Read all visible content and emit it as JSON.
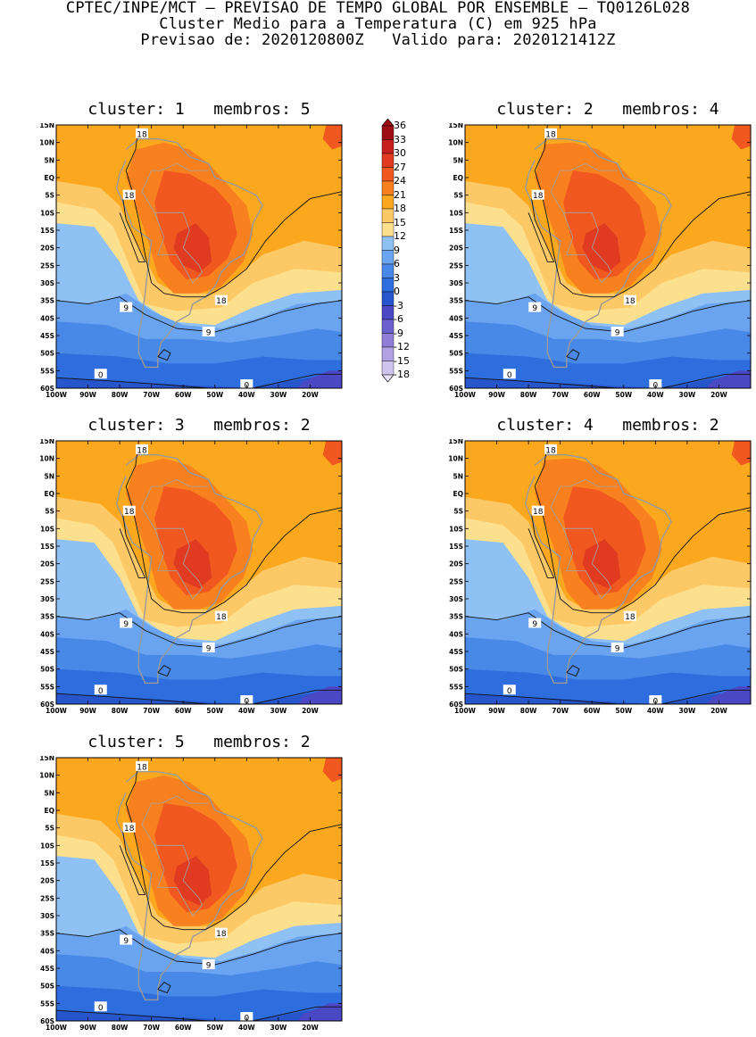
{
  "header": {
    "line1": "CPTEC/INPE/MCT – PREVISAO DE TEMPO GLOBAL POR ENSEMBLE – TQ0126L028",
    "line2": "Cluster Medio para a Temperatura (C) em 925 hPa",
    "line3": "Previsao de: 2020120800Z   Valido para: 2020121412Z"
  },
  "axes": {
    "lat_labels": [
      "15N",
      "10N",
      "5N",
      "EQ",
      "5S",
      "10S",
      "15S",
      "20S",
      "25S",
      "30S",
      "35S",
      "40S",
      "45S",
      "50S",
      "55S",
      "60S"
    ],
    "lon_labels": [
      "100W",
      "90W",
      "80W",
      "70W",
      "60W",
      "50W",
      "40W",
      "30W",
      "20W"
    ],
    "lat_range": [
      -60,
      15
    ],
    "lon_range": [
      -100,
      -10
    ]
  },
  "colorbar": {
    "labels": [
      "36",
      "33",
      "30",
      "27",
      "24",
      "21",
      "18",
      "15",
      "12",
      "9",
      "6",
      "3",
      "0",
      "-3",
      "-6",
      "-9",
      "-12",
      "-15",
      "-18"
    ],
    "colors": [
      "#9e0d14",
      "#c61f1d",
      "#e03a21",
      "#f0581f",
      "#f9801e",
      "#fba81f",
      "#fdc967",
      "#fde08d",
      "#8fc1f5",
      "#6aa3ef",
      "#4888e6",
      "#2e6ddd",
      "#2655cc",
      "#4b48c5",
      "#6c5fce",
      "#8f7ed7",
      "#b1a1e2",
      "#d0c5ee"
    ]
  },
  "panels": [
    {
      "title": "cluster: 1   membros: 5",
      "contours": [
        "18",
        "18",
        "18",
        "9",
        "9",
        "0",
        "0"
      ]
    },
    {
      "title": "cluster: 2   membros: 4",
      "contours": [
        "18",
        "18",
        "18",
        "9",
        "9",
        "0",
        "0"
      ]
    },
    {
      "title": "cluster: 3   membros: 2",
      "contours": [
        "18",
        "18",
        "18",
        "9",
        "9",
        "0",
        "0"
      ]
    },
    {
      "title": "cluster: 4   membros: 2",
      "contours": [
        "18",
        "18",
        "18",
        "9",
        "9",
        "0",
        "0"
      ]
    },
    {
      "title": "cluster: 5   membros: 2",
      "contours": [
        "18",
        "18",
        "18",
        "9",
        "9",
        "0",
        "0"
      ]
    }
  ]
}
